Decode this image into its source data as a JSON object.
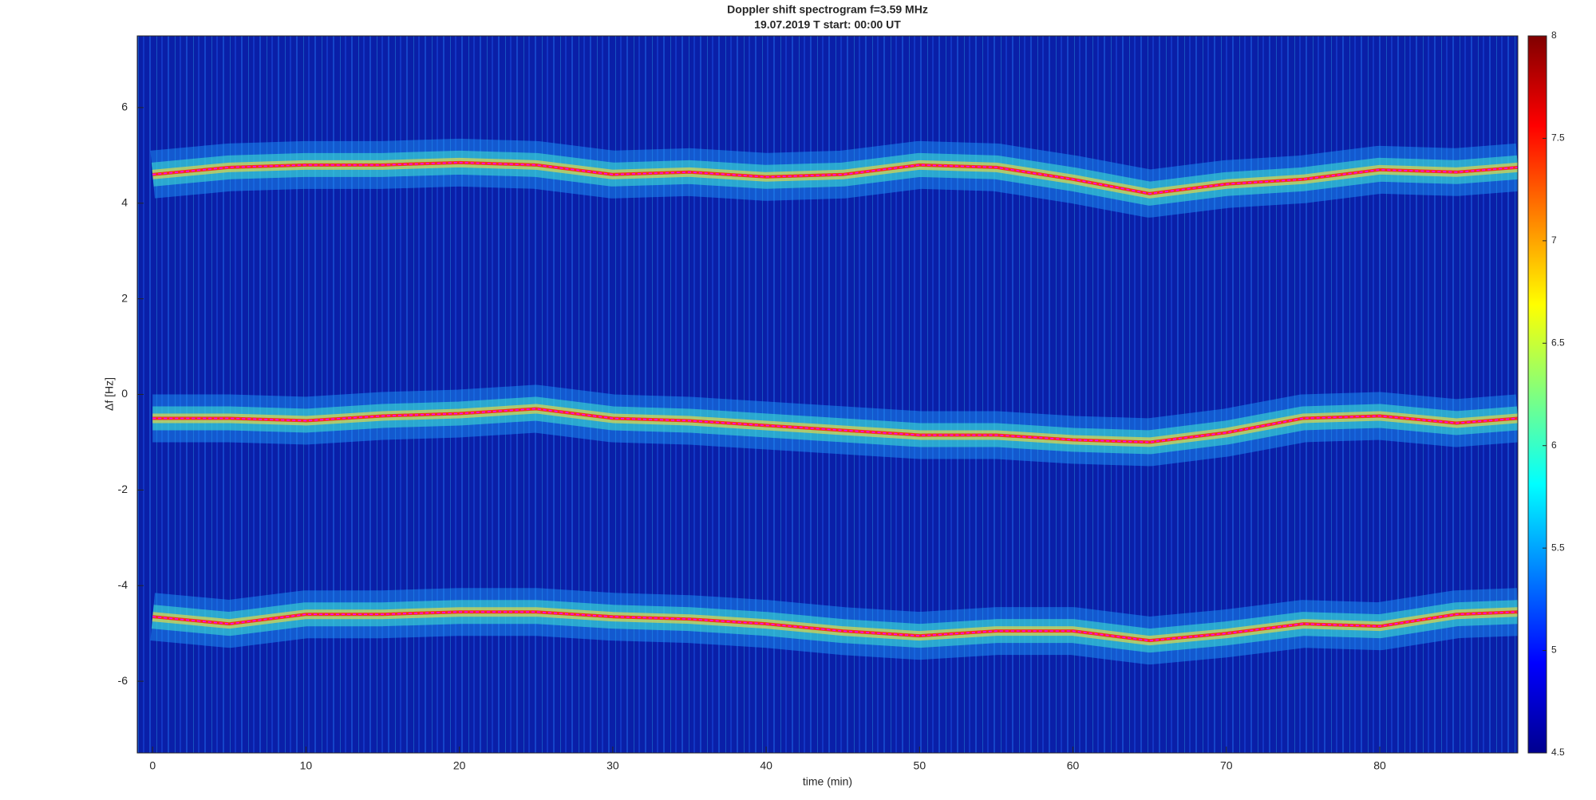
{
  "chart_data": {
    "type": "spectrogram",
    "title": "Doppler shift spectrogram f=3.59 MHz",
    "subtitle": "19.07.2019   T start: 00:00 UT",
    "xlabel": "time (min)",
    "ylabel": "Δf [Hz]",
    "colormap": "jet",
    "x": [
      0,
      5,
      10,
      15,
      20,
      25,
      30,
      35,
      40,
      45,
      50,
      55,
      60,
      65,
      70,
      75,
      80,
      85,
      89
    ],
    "series": [
      {
        "color": "#ff00ff",
        "values": [
          4.6,
          4.75,
          4.8,
          4.8,
          4.85,
          4.8,
          4.6,
          4.65,
          4.55,
          4.6,
          4.8,
          4.75,
          4.5,
          4.2,
          4.4,
          4.5,
          4.7,
          4.65,
          4.75
        ]
      },
      {
        "color": "#ff00ff",
        "values": [
          -0.5,
          -0.5,
          -0.55,
          -0.45,
          -0.4,
          -0.3,
          -0.5,
          -0.55,
          -0.65,
          -0.75,
          -0.85,
          -0.85,
          -0.95,
          -1.0,
          -0.8,
          -0.5,
          -0.45,
          -0.6,
          -0.5
        ]
      },
      {
        "color": "#ff00ff",
        "values": [
          -4.65,
          -4.8,
          -4.6,
          -4.6,
          -4.55,
          -4.55,
          -4.65,
          -4.7,
          -4.8,
          -4.95,
          -5.05,
          -4.95,
          -4.95,
          -5.15,
          -5.0,
          -4.8,
          -4.85,
          -4.6,
          -4.55
        ]
      }
    ],
    "xlim": [
      -1,
      89
    ],
    "xticks": [
      0,
      10,
      20,
      30,
      40,
      50,
      60,
      70,
      80
    ],
    "ylim": [
      -7.5,
      7.5
    ],
    "yticks": [
      -6,
      -4,
      -2,
      0,
      2,
      4,
      6
    ],
    "clim": [
      4.5,
      8
    ],
    "cticks": [
      4.5,
      5,
      5.5,
      6,
      6.5,
      7,
      7.5,
      8
    ]
  }
}
